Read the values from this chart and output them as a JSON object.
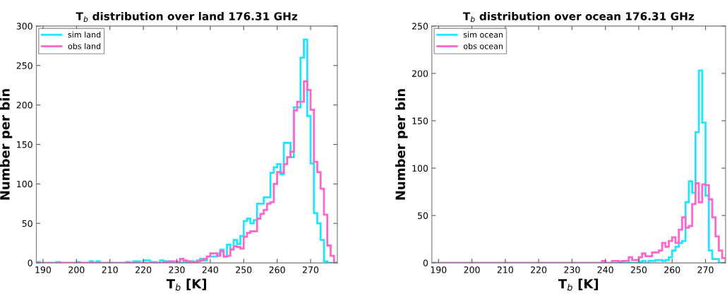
{
  "chart_data": [
    {
      "type": "histogram",
      "title": "T$_{b}$ distribution over land 176.31 GHz",
      "xlabel": "T$_{b}$ [K]",
      "ylabel": "Number per bin",
      "bins": [
        188,
        189,
        190,
        191,
        192,
        193,
        194,
        195,
        196,
        197,
        198,
        199,
        200,
        201,
        202,
        203,
        204,
        205,
        206,
        207,
        208,
        209,
        210,
        211,
        212,
        213,
        214,
        215,
        216,
        217,
        218,
        219,
        220,
        221,
        222,
        223,
        224,
        225,
        226,
        227,
        228,
        229,
        230,
        231,
        232,
        233,
        234,
        235,
        236,
        237,
        238,
        239,
        240,
        241,
        242,
        243,
        244,
        245,
        246,
        247,
        248,
        249,
        250,
        251,
        252,
        253,
        254,
        255,
        256,
        257,
        258,
        259,
        260,
        261,
        262,
        263,
        264,
        265,
        266,
        267,
        268,
        269,
        270,
        271,
        272,
        273,
        274,
        275,
        276,
        277,
        278
      ],
      "series": [
        {
          "name": "sim land",
          "color": "#1ee6ff",
          "values": [
            1,
            0,
            0,
            0,
            0,
            0,
            1,
            0,
            0,
            0,
            0,
            0,
            1,
            0,
            0,
            0,
            2,
            0,
            2,
            0,
            0,
            0,
            0,
            0,
            0,
            0,
            0,
            1,
            0,
            2,
            2,
            0,
            3,
            3,
            1,
            1,
            0,
            3,
            2,
            2,
            1,
            1,
            1,
            0,
            1,
            0,
            2,
            0,
            3,
            5,
            3,
            8,
            8,
            8,
            12,
            17,
            8,
            23,
            17,
            29,
            24,
            34,
            53,
            56,
            50,
            54,
            75,
            75,
            83,
            83,
            114,
            121,
            125,
            112,
            152,
            152,
            134,
            197,
            197,
            260,
            283,
            186,
            126,
            63,
            50,
            29,
            2,
            0,
            0,
            0
          ]
        },
        {
          "name": "obs land",
          "color": "#ff66cc",
          "values": [
            0,
            0,
            0,
            0,
            0,
            0,
            0,
            0,
            0,
            0,
            0,
            0,
            0,
            0,
            0,
            0,
            0,
            0,
            0,
            0,
            0,
            0,
            0,
            0,
            0,
            0,
            0,
            0,
            0,
            0,
            0,
            0,
            0,
            0,
            0,
            0,
            0,
            0,
            1,
            1,
            2,
            2,
            1,
            5,
            3,
            2,
            1,
            1,
            2,
            3,
            5,
            8,
            12,
            12,
            9,
            15,
            8,
            9,
            17,
            21,
            20,
            18,
            33,
            38,
            40,
            40,
            56,
            62,
            67,
            75,
            77,
            100,
            115,
            114,
            125,
            134,
            141,
            193,
            204,
            204,
            230,
            219,
            194,
            128,
            115,
            94,
            61,
            22,
            9,
            0
          ]
        }
      ],
      "xlim": [
        188,
        278
      ],
      "ylim": [
        0,
        300
      ],
      "xticks": [
        190,
        200,
        210,
        220,
        230,
        240,
        250,
        260,
        270
      ],
      "yticks": [
        0,
        50,
        100,
        150,
        200,
        250,
        300
      ],
      "legend": "top left"
    },
    {
      "type": "histogram",
      "title": "T$_{b}$ distribution over ocean 176.31 GHz",
      "xlabel": "T$_{b}$ [K]",
      "ylabel": "Number per bin",
      "bins": [
        188,
        189,
        190,
        191,
        192,
        193,
        194,
        195,
        196,
        197,
        198,
        199,
        200,
        201,
        202,
        203,
        204,
        205,
        206,
        207,
        208,
        209,
        210,
        211,
        212,
        213,
        214,
        215,
        216,
        217,
        218,
        219,
        220,
        221,
        222,
        223,
        224,
        225,
        226,
        227,
        228,
        229,
        230,
        231,
        232,
        233,
        234,
        235,
        236,
        237,
        238,
        239,
        240,
        241,
        242,
        243,
        244,
        245,
        246,
        247,
        248,
        249,
        250,
        251,
        252,
        253,
        254,
        255,
        256,
        257,
        258,
        259,
        260,
        261,
        262,
        263,
        264,
        265,
        266,
        267,
        268,
        269,
        270,
        271,
        272,
        273,
        274,
        275,
        276
      ],
      "series": [
        {
          "name": "sim ocean",
          "color": "#1ee6ff",
          "values": [
            0,
            0,
            0,
            0,
            0,
            0,
            0,
            0,
            0,
            0,
            0,
            0,
            0,
            0,
            0,
            0,
            0,
            0,
            0,
            0,
            0,
            0,
            0,
            0,
            0,
            0,
            0,
            0,
            0,
            0,
            0,
            0,
            0,
            0,
            0,
            0,
            0,
            0,
            0,
            0,
            0,
            0,
            0,
            0,
            0,
            0,
            0,
            0,
            0,
            0,
            0,
            0,
            0,
            0,
            0,
            0,
            0,
            0,
            0,
            0,
            0,
            0,
            1,
            2,
            0,
            2,
            2,
            3,
            3,
            2,
            3,
            6,
            13,
            17,
            21,
            23,
            64,
            86,
            74,
            138,
            203,
            148,
            71,
            13,
            4,
            4,
            0,
            0
          ]
        },
        {
          "name": "obs ocean",
          "color": "#ff66cc",
          "values": [
            0,
            0,
            0,
            0,
            0,
            0,
            0,
            0,
            0,
            0,
            0,
            0,
            0,
            0,
            0,
            0,
            0,
            0,
            0,
            0,
            0,
            0,
            0,
            0,
            0,
            0,
            0,
            0,
            0,
            0,
            0,
            0,
            0,
            0,
            0,
            0,
            0,
            0,
            0,
            0,
            0,
            0,
            0,
            0,
            0,
            0,
            0,
            0,
            0,
            0,
            0,
            2,
            0,
            0,
            2,
            2,
            1,
            2,
            2,
            6,
            3,
            3,
            6,
            10,
            7,
            7,
            11,
            11,
            13,
            21,
            17,
            23,
            27,
            21,
            35,
            48,
            37,
            39,
            62,
            84,
            64,
            83,
            82,
            67,
            48,
            28,
            13,
            5
          ]
        }
      ],
      "xlim": [
        188,
        276
      ],
      "ylim": [
        0,
        250
      ],
      "xticks": [
        190,
        200,
        210,
        220,
        230,
        240,
        250,
        260,
        270
      ],
      "yticks": [
        0,
        50,
        100,
        150,
        200,
        250
      ],
      "legend": "top left"
    }
  ]
}
